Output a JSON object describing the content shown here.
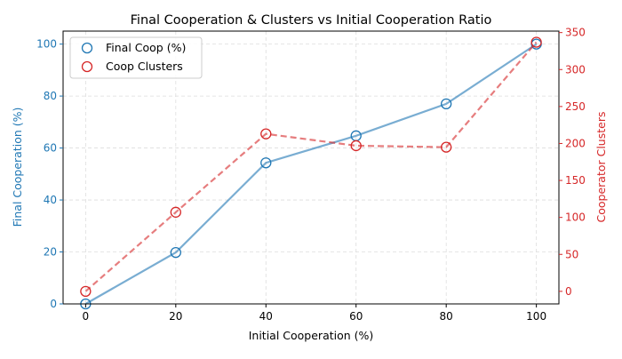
{
  "chart_data": {
    "type": "line",
    "title": "Final Cooperation & Clusters vs Initial Cooperation Ratio",
    "xlabel": "Initial Cooperation (%)",
    "ylabel_left": "Final Cooperation (%)",
    "ylabel_right": "Cooperator Clusters",
    "x": [
      0,
      20,
      40,
      60,
      80,
      100
    ],
    "xlim": [
      -5,
      105
    ],
    "xticks": [
      "0",
      "20",
      "40",
      "60",
      "80",
      "100"
    ],
    "ylim_left": [
      0,
      105
    ],
    "yticks_left": [
      "0",
      "20",
      "40",
      "60",
      "80",
      "100"
    ],
    "ylim_right": [
      -17,
      352
    ],
    "yticks_right": [
      "0",
      "50",
      "100",
      "150",
      "200",
      "250",
      "300",
      "350"
    ],
    "grid": true,
    "legend_position": "top-left",
    "series": [
      {
        "name": "Final Coop (%)",
        "axis": "left",
        "color": "#1f77b4",
        "line_style": "solid",
        "values": [
          0,
          19.8,
          54.3,
          64.7,
          77.0,
          100.0
        ]
      },
      {
        "name": "Coop Clusters",
        "axis": "right",
        "color": "#d62728",
        "line_style": "dashed",
        "values": [
          0,
          107,
          213,
          197,
          195,
          337
        ]
      }
    ]
  }
}
